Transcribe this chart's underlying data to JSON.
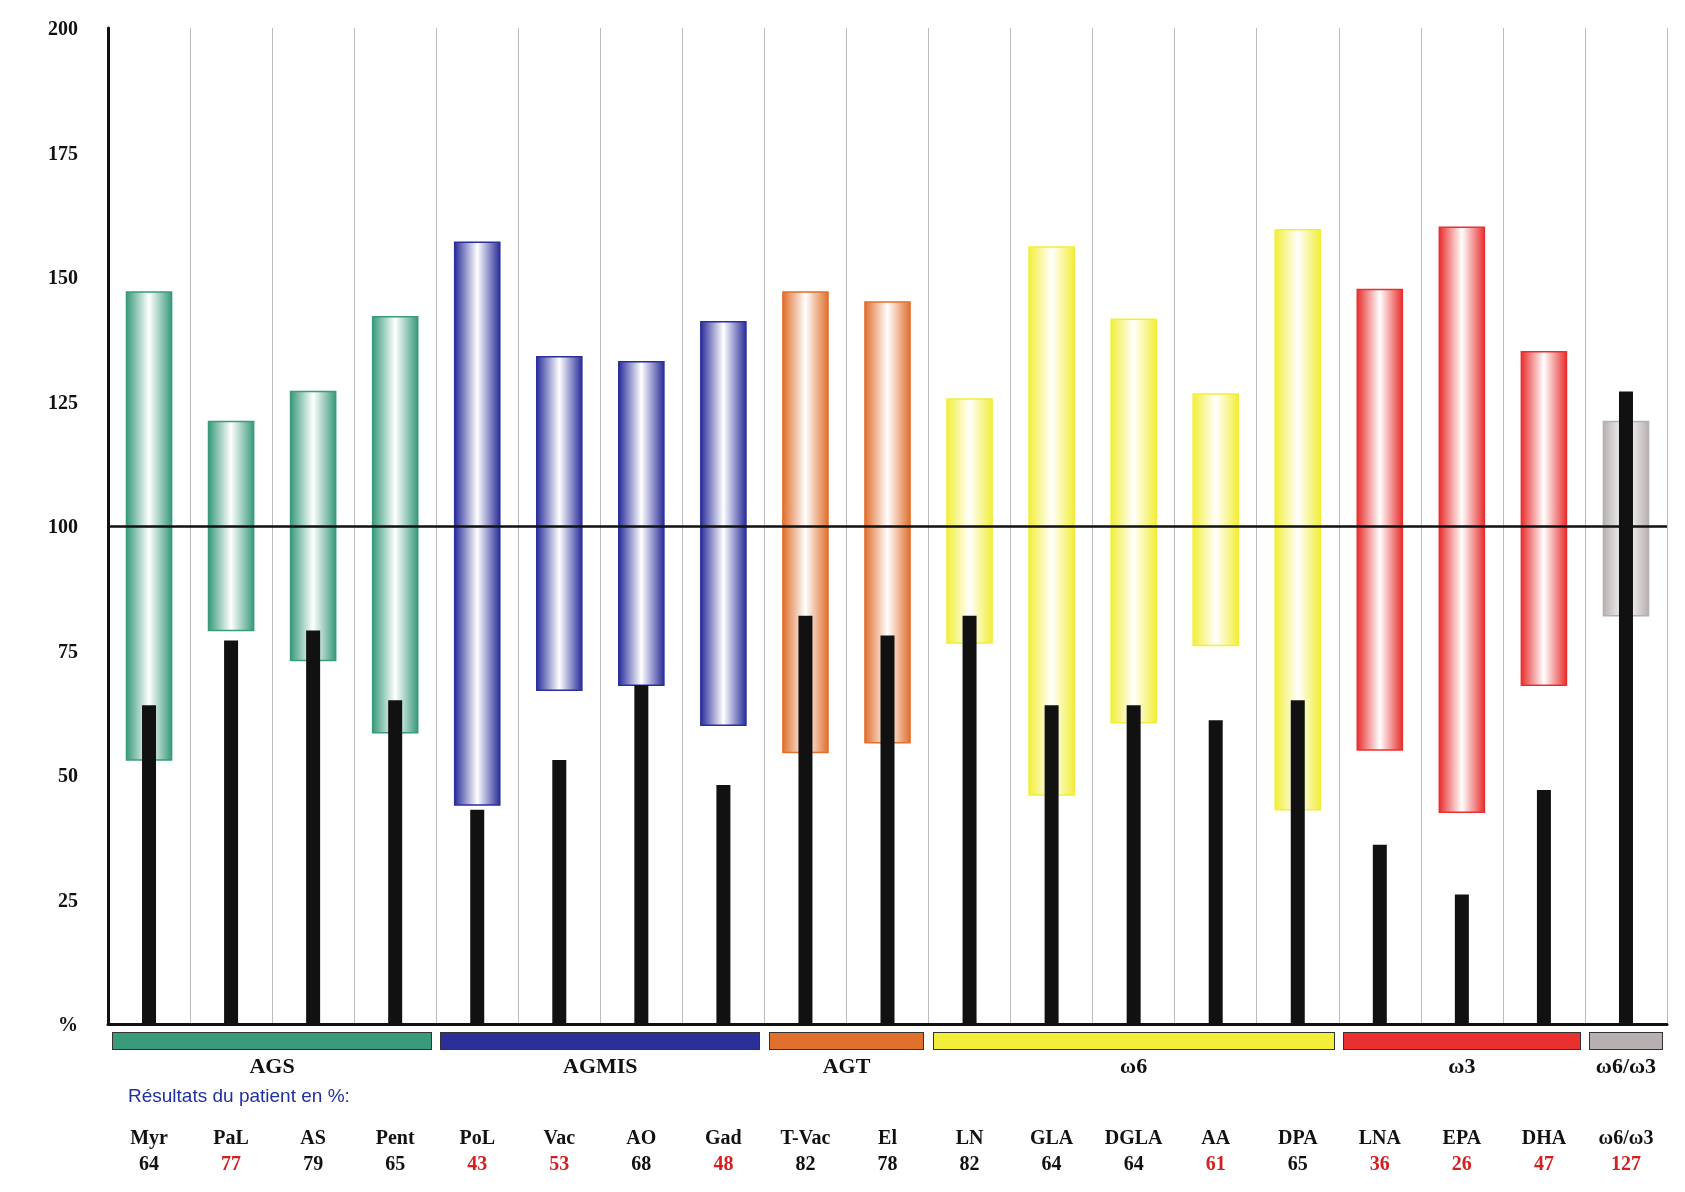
{
  "chart_data": {
    "type": "bar",
    "categories": [
      "Myr",
      "PaL",
      "AS",
      "Pent",
      "PoL",
      "Vac",
      "AO",
      "Gad",
      "T-Vac",
      "El",
      "LN",
      "GLA",
      "DGLA",
      "AA",
      "DPA",
      "LNA",
      "EPA",
      "DHA",
      "ω6/ω3"
    ],
    "series": [
      {
        "base": [
          53,
          79,
          73,
          58.5,
          44,
          67,
          68,
          60,
          54.5,
          56.5,
          76.5,
          46,
          60.5,
          76,
          43,
          55,
          42.5,
          68,
          82
        ],
        "values": [
          94,
          42,
          54,
          83.5,
          113,
          67,
          65,
          81,
          92.5,
          88.5,
          49,
          110,
          81,
          50.5,
          116.5,
          92.5,
          117.5,
          67,
          39
        ],
        "colors": [
          "#3a9a7c",
          "#3a9a7c",
          "#3a9a7c",
          "#3a9a7c",
          "#2b2f9a",
          "#2b2f9a",
          "#2b2f9a",
          "#2b2f9a",
          "#e0702e",
          "#e0702e",
          "#f2ee3a",
          "#f2ee3a",
          "#f2ee3a",
          "#f2ee3a",
          "#f2ee3a",
          "#e83030",
          "#e83030",
          "#e83030",
          "#b8b0b0"
        ]
      },
      {
        "color": "#111111",
        "values": [
          64,
          77,
          79,
          65,
          43,
          53,
          68,
          48,
          82,
          78,
          82,
          64,
          64,
          61,
          65,
          36,
          26,
          47,
          127
        ],
        "value_labels": [
          "64",
          "77",
          "79",
          "65",
          "43",
          "53",
          "68",
          "48",
          "82",
          "78",
          "82",
          "64",
          "64",
          "61",
          "65",
          "36",
          "26",
          "47",
          "127"
        ]
      }
    ],
    "ylim": [
      0,
      200
    ],
    "yticks": [
      {
        "value": 0,
        "label": "%"
      },
      25,
      50,
      75,
      100,
      125,
      150,
      175,
      200
    ],
    "grid": "x",
    "ref_lines": [
      {
        "axis": "y",
        "value": 100,
        "label": null,
        "color": "#111111"
      }
    ],
    "annotations": [
      "AGS",
      "AGMIS",
      "AGT",
      "ω6",
      "ω3",
      "ω6/ω3",
      "Résultats du patient en %:"
    ]
  }
}
